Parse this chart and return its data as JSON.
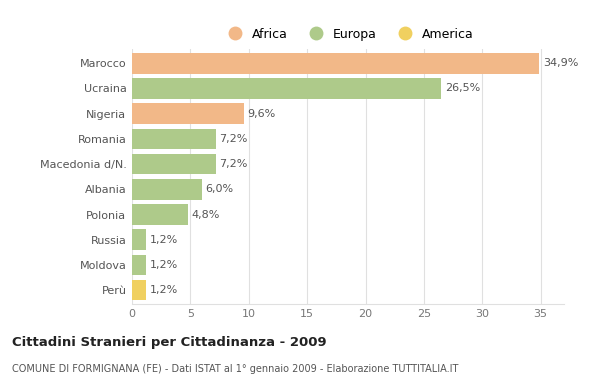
{
  "categories": [
    "Marocco",
    "Ucraina",
    "Nigeria",
    "Romania",
    "Macedonia d/N.",
    "Albania",
    "Polonia",
    "Russia",
    "Moldova",
    "Perù"
  ],
  "values": [
    34.9,
    26.5,
    9.6,
    7.2,
    7.2,
    6.0,
    4.8,
    1.2,
    1.2,
    1.2
  ],
  "labels": [
    "34,9%",
    "26,5%",
    "9,6%",
    "7,2%",
    "7,2%",
    "6,0%",
    "4,8%",
    "1,2%",
    "1,2%",
    "1,2%"
  ],
  "colors": [
    "#F2B888",
    "#AECA8A",
    "#F2B888",
    "#AECA8A",
    "#AECA8A",
    "#AECA8A",
    "#AECA8A",
    "#AECA8A",
    "#AECA8A",
    "#F0D060"
  ],
  "legend": [
    {
      "label": "Africa",
      "color": "#F2B888"
    },
    {
      "label": "Europa",
      "color": "#AECA8A"
    },
    {
      "label": "America",
      "color": "#F0D060"
    }
  ],
  "title": "Cittadini Stranieri per Cittadinanza - 2009",
  "subtitle": "COMUNE DI FORMIGNANA (FE) - Dati ISTAT al 1° gennaio 2009 - Elaborazione TUTTITALIA.IT",
  "xlim": [
    0,
    37
  ],
  "xticks": [
    0,
    5,
    10,
    15,
    20,
    25,
    30,
    35
  ],
  "bg_color": "#ffffff",
  "grid_color": "#e0e0e0",
  "bar_height": 0.82,
  "label_fontsize": 8,
  "ytick_fontsize": 8,
  "xtick_fontsize": 8
}
